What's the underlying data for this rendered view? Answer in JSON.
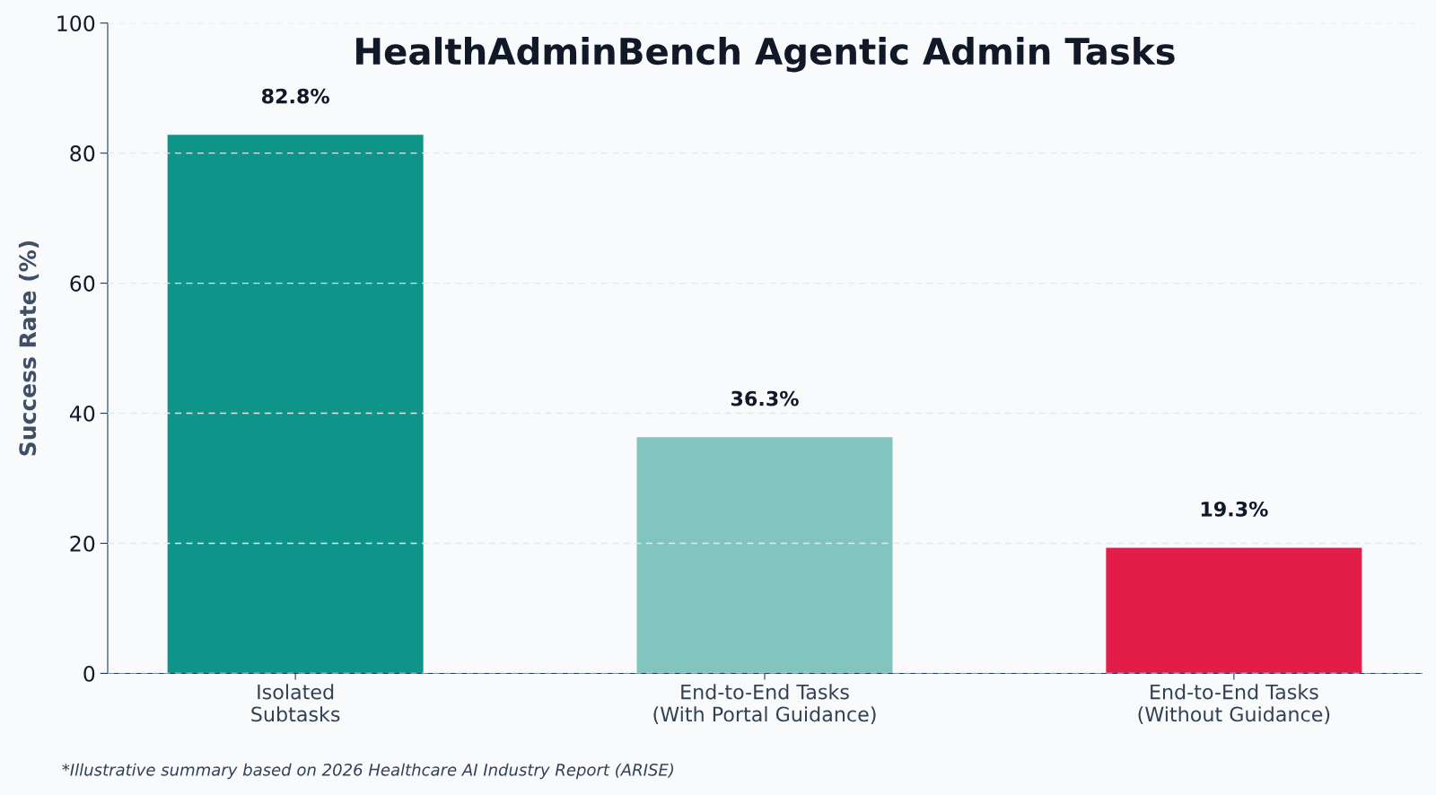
{
  "chart_data": {
    "type": "bar",
    "title": "HealthAdminBench Agentic Admin Tasks",
    "ylabel": "Success Rate (%)",
    "categories": [
      "Isolated\nSubtasks",
      "End-to-End Tasks\n(With Portal Guidance)",
      "End-to-End Tasks\n(Without Guidance)"
    ],
    "values": [
      82.8,
      36.3,
      19.3
    ],
    "colors": [
      "#0e9488",
      "#82c5bf",
      "#e11d48"
    ],
    "value_labels": [
      "82.8%",
      "36.3%",
      "19.3%"
    ],
    "ylim": [
      0,
      100
    ],
    "yticks": [
      0,
      20,
      40,
      60,
      80,
      100
    ],
    "grid": "y",
    "legend": false,
    "annotations": [
      "*Illustrative summary based on 2026 Healthcare AI Industry Report (ARISE)"
    ]
  }
}
